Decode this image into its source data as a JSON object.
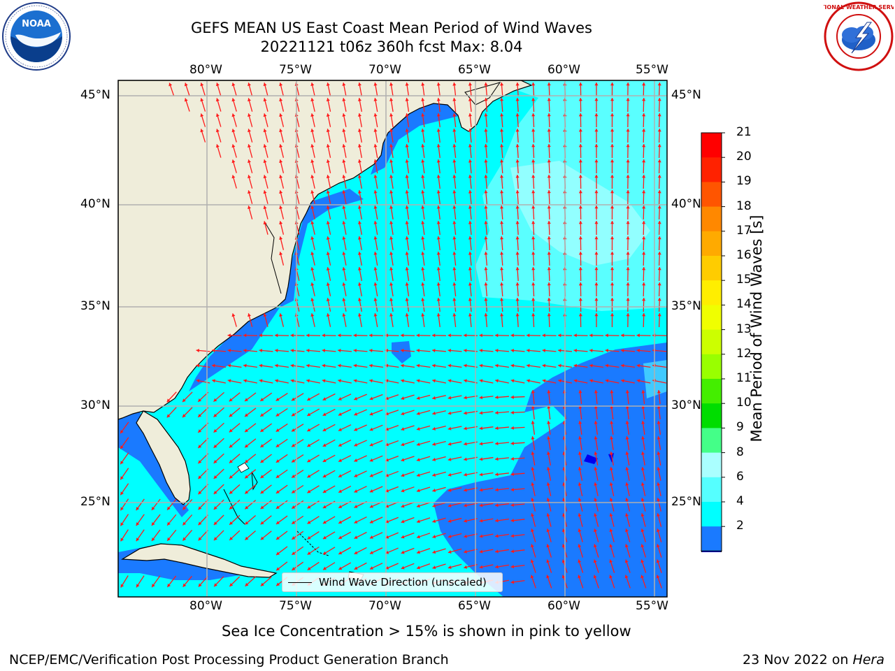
{
  "title": {
    "line1": "GEFS MEAN US East Coast Mean Period of Wind Waves",
    "line2": "20221121 t06z 360h fcst   Max: 8.04"
  },
  "map": {
    "lon_ticks": [
      "80°W",
      "75°W",
      "70°W",
      "65°W",
      "60°W",
      "55°W"
    ],
    "lat_ticks": [
      "45°N",
      "40°N",
      "35°N",
      "30°N",
      "25°N"
    ],
    "extent": {
      "lon_min": -85,
      "lon_max": -54.3,
      "lat_min": 20.5,
      "lat_max": 45.8
    },
    "legend_label": "Wind Wave Direction (unscaled)",
    "land_color": "#efedda",
    "grid_color": "#b0b0b0",
    "arrow_color": "#ff1a1a"
  },
  "colorbar": {
    "label": "Mean Period of Wind Waves [s]",
    "ticks": [
      "21",
      "20",
      "19",
      "18",
      "17",
      "16",
      "15",
      "14",
      "13",
      "12",
      "11",
      "10",
      "9",
      "8",
      "6",
      "4",
      "2"
    ],
    "colors": [
      "#ff0000",
      "#ff2200",
      "#ff5500",
      "#ff8800",
      "#ffaa00",
      "#ffcc00",
      "#ffee00",
      "#f0ff00",
      "#ccff00",
      "#99ff00",
      "#44ee00",
      "#00dd00",
      "#44ff88",
      "#aaffff",
      "#55ffff",
      "#00ffff",
      "#1a7aff"
    ],
    "under_color": "#0000ee"
  },
  "logos": {
    "noaa_text": "NOAA",
    "nws_text": "NATIONAL WEATHER SERVICE"
  },
  "footer": {
    "sea_ice_note": "Sea Ice Concentration > 15% is shown in pink to yellow",
    "producer": "NCEP/EMC/Verification Post Processing Product Generation Branch",
    "date": "23 Nov 2022 on",
    "machine": "Hera"
  }
}
